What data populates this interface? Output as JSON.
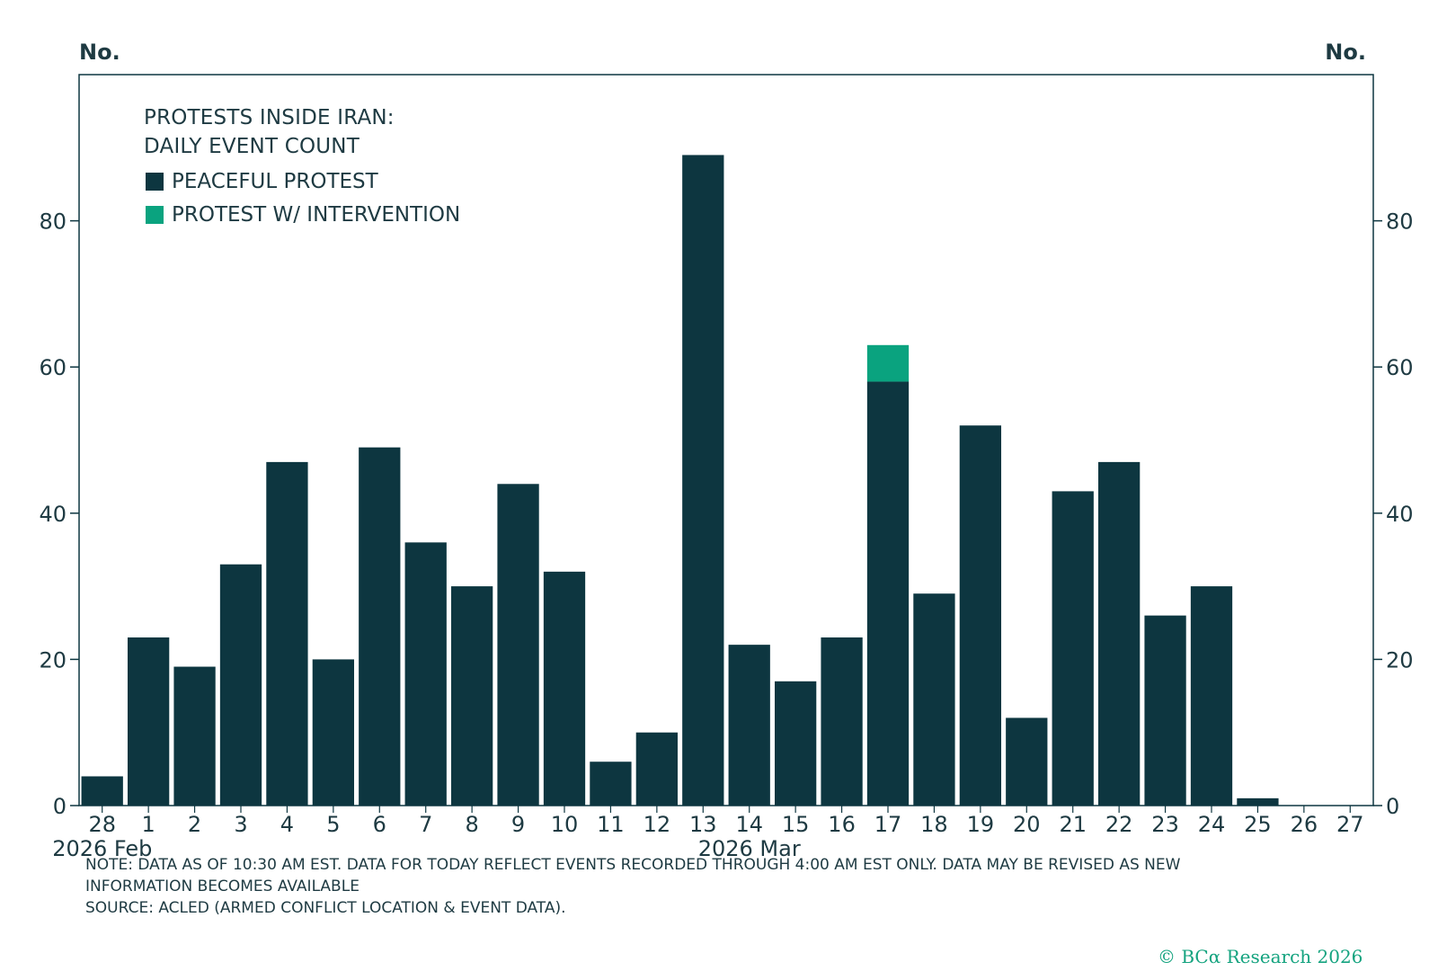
{
  "chart_data": {
    "type": "bar",
    "stacked": true,
    "title_lines": [
      "PROTESTS INSIDE IRAN:",
      "DAILY EVENT COUNT"
    ],
    "y_unit_left": "No.",
    "y_unit_right": "No.",
    "ylim": [
      0,
      100
    ],
    "yticks": [
      0,
      20,
      40,
      60,
      80
    ],
    "categories": [
      "28",
      "1",
      "2",
      "3",
      "4",
      "5",
      "6",
      "7",
      "8",
      "9",
      "10",
      "11",
      "12",
      "13",
      "14",
      "15",
      "16",
      "17",
      "18",
      "19",
      "20",
      "21",
      "22",
      "23",
      "24",
      "25",
      "26",
      "27"
    ],
    "category_groups": [
      {
        "label": "2026 Feb",
        "index": 0
      },
      {
        "label": "2026 Mar",
        "index": 14
      }
    ],
    "series": [
      {
        "name": "PEACEFUL PROTEST",
        "color": "#0d3640",
        "values": [
          4,
          23,
          19,
          33,
          47,
          20,
          49,
          36,
          30,
          44,
          32,
          6,
          10,
          89,
          22,
          17,
          23,
          58,
          29,
          52,
          12,
          43,
          47,
          26,
          30,
          1,
          0,
          0
        ]
      },
      {
        "name": "PROTEST W/ INTERVENTION",
        "color": "#0aa37f",
        "values": [
          0,
          0,
          0,
          0,
          0,
          0,
          0,
          0,
          0,
          0,
          0,
          0,
          0,
          0,
          0,
          0,
          0,
          5,
          0,
          0,
          0,
          0,
          0,
          0,
          0,
          0,
          0,
          0
        ]
      }
    ],
    "legend": "top-left"
  },
  "notes": {
    "line1": "NOTE: DATA AS OF 10:30 AM EST. DATA FOR TODAY REFLECT EVENTS RECORDED THROUGH 4:00 AM EST ONLY. DATA MAY BE REVISED AS NEW",
    "line2": "INFORMATION BECOMES AVAILABLE",
    "source": "SOURCE: ACLED (ARMED CONFLICT LOCATION & EVENT DATA)."
  },
  "credit": "© BCα Research 2026"
}
